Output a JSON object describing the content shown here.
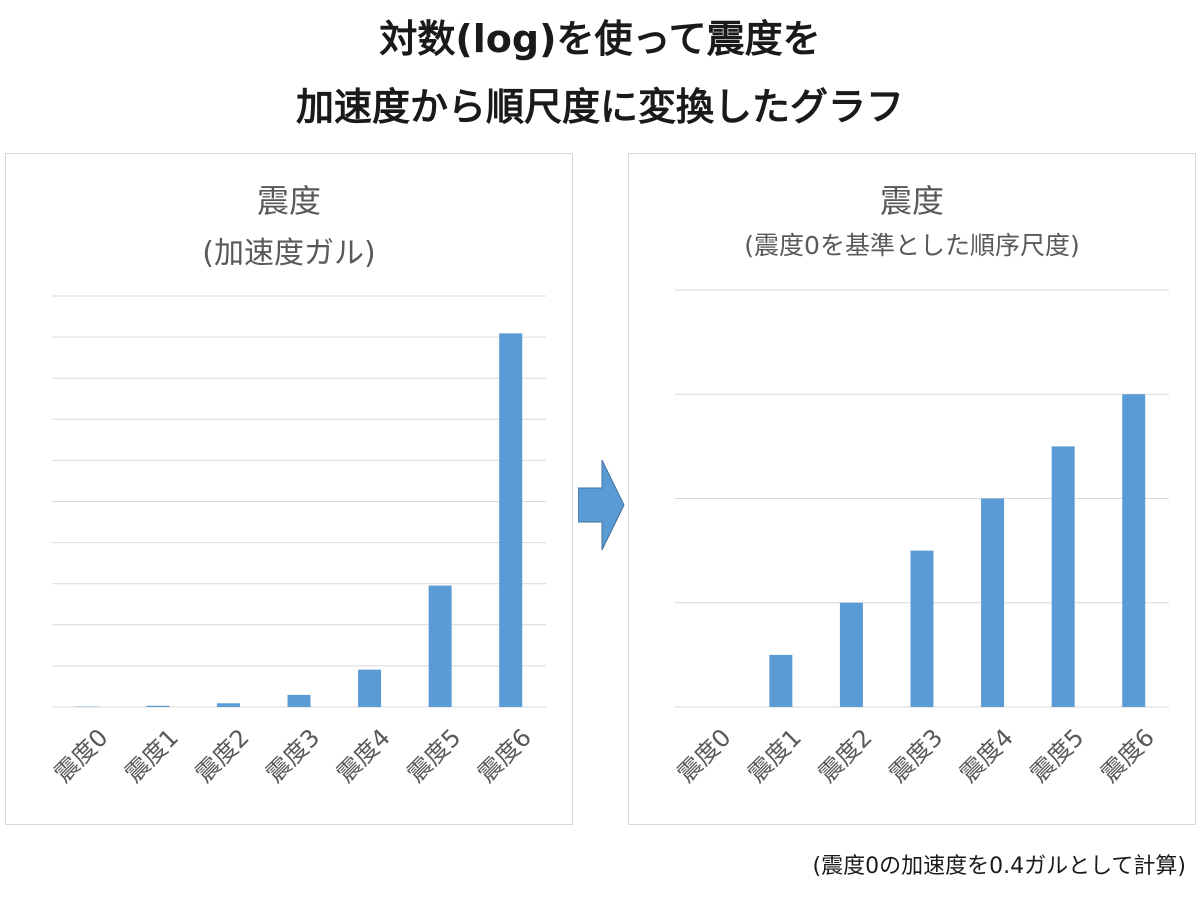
{
  "title": {
    "line1": "対数(log)を使って震度を",
    "line2": "加速度から順尺度に変換したグラフ"
  },
  "footnote": "(震度0の加速度を0.4ガルとして計算)",
  "colors": {
    "bar": "#5b9bd5",
    "grid": "#d9d9d9",
    "arrow": "#5b9bd5",
    "text": "#595959"
  },
  "chart_data": [
    {
      "type": "bar",
      "title": "震度",
      "subtitle": "(加速度ガル)",
      "categories": [
        "震度0",
        "震度1",
        "震度2",
        "震度3",
        "震度4",
        "震度5",
        "震度6"
      ],
      "values": [
        0.4,
        1.3,
        4,
        13,
        40,
        130,
        400
      ],
      "ylim": [
        0,
        440
      ],
      "grid": true
    },
    {
      "type": "bar",
      "title": "震度",
      "subtitle": "(震度0を基準とした順序尺度)",
      "categories": [
        "震度0",
        "震度1",
        "震度2",
        "震度3",
        "震度4",
        "震度5",
        "震度6"
      ],
      "values": [
        0,
        0.5,
        1,
        1.5,
        2,
        2.5,
        3
      ],
      "ylim": [
        0,
        4
      ],
      "grid": true
    }
  ]
}
